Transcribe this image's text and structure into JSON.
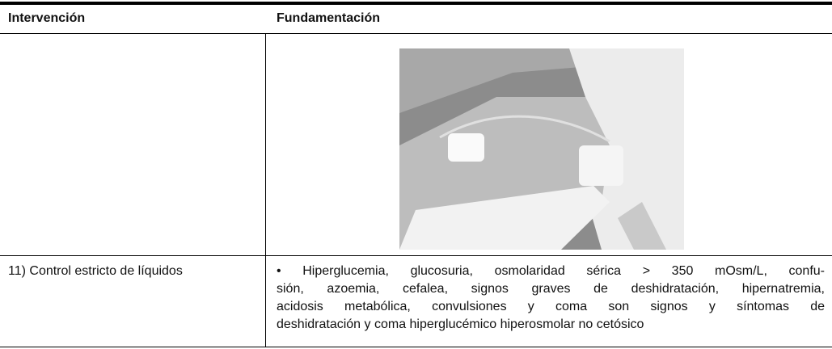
{
  "table": {
    "header": [
      "Intervención",
      "Fundamentación"
    ],
    "rows": [
      [
        "",
        ""
      ],
      [
        "11) Control estricto de líquidos",
        [
          "• Hiperglucemia, glucosuria, osmolaridad sérica > 350 mOsm/L, confu-",
          "sión, azoemia, cefalea, signos graves de deshidratación, hipernatremia,",
          "acidosis metabólica, convulsiones y coma son signos y síntomas de",
          "deshidratación y coma hiperglucémico hiperosmolar no cetósico"
        ]
      ]
    ]
  }
}
